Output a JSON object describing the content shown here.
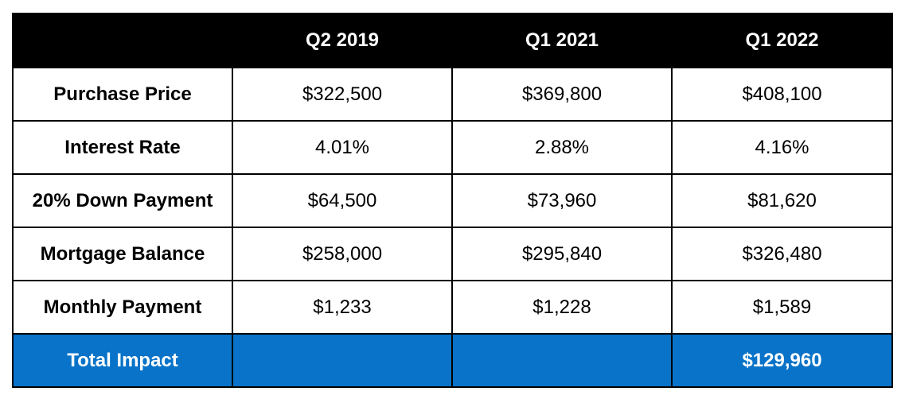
{
  "chart_data": {
    "type": "table",
    "columns": [
      "",
      "Q2 2019",
      "Q1 2021",
      "Q1 2022"
    ],
    "rows": [
      {
        "label": "Purchase Price",
        "values": [
          "$322,500",
          "$369,800",
          "$408,100"
        ]
      },
      {
        "label": "Interest Rate",
        "values": [
          "4.01%",
          "2.88%",
          "4.16%"
        ]
      },
      {
        "label": "20% Down Payment",
        "values": [
          "$64,500",
          "$73,960",
          "$81,620"
        ]
      },
      {
        "label": "Mortgage Balance",
        "values": [
          "$258,000",
          "$295,840",
          "$326,480"
        ]
      },
      {
        "label": "Monthly Payment",
        "values": [
          "$1,233",
          "$1,228",
          "$1,589"
        ]
      }
    ],
    "total_row": {
      "label": "Total Impact",
      "values": [
        "",
        "",
        "$129,960"
      ]
    }
  },
  "colors": {
    "header_bg": "#000000",
    "header_text": "#ffffff",
    "total_bg": "#0873c8",
    "total_text": "#ffffff"
  }
}
